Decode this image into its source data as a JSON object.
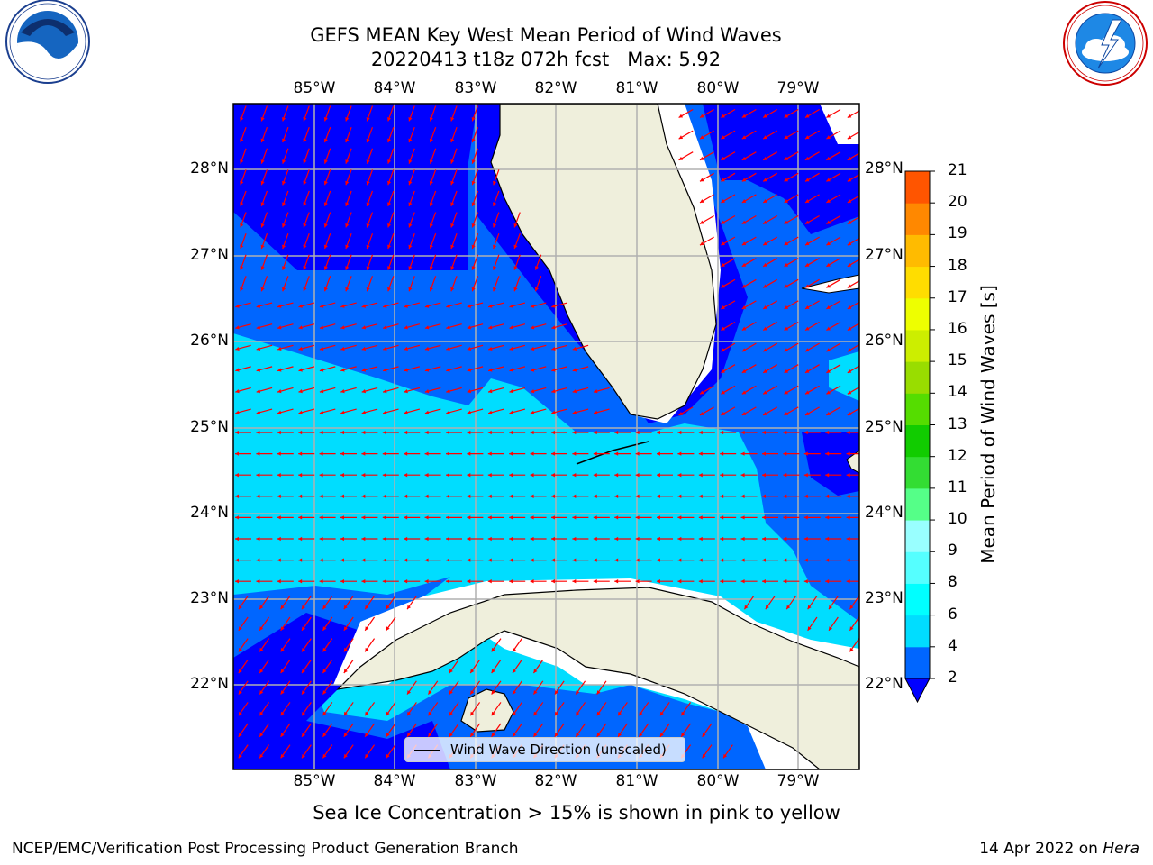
{
  "title_line1": "GEFS MEAN Key West Mean Period of Wind Waves",
  "title_line2": "20220413 t18z 072h fcst   Max: 5.92",
  "footnote": "Sea Ice Concentration > 15% is shown in pink to yellow",
  "credit": "NCEP/EMC/Verification Post Processing Product Generation Branch",
  "date_line_prefix": "14 Apr 2022 on ",
  "date_line_host": "Hera",
  "legend": {
    "label": "Wind Wave Direction (unscaled)"
  },
  "logos": {
    "left": "noara-logo",
    "right": "national-weather-service-logo"
  },
  "colorbar": {
    "title": "Mean Period of Wind Waves [s]",
    "ticks": [
      "2",
      "4",
      "6",
      "8",
      "9",
      "10",
      "11",
      "12",
      "13",
      "14",
      "15",
      "16",
      "17",
      "18",
      "19",
      "20",
      "21"
    ],
    "colors": [
      "#0066ff",
      "#00ddff",
      "#00ffff",
      "#55ffff",
      "#99ffff",
      "#55ff88",
      "#33dd33",
      "#11cc00",
      "#55dd00",
      "#99dd00",
      "#ccee00",
      "#eeff00",
      "#ffdd00",
      "#ffbb00",
      "#ff8800",
      "#ff5500",
      "#ff3300",
      "#ff1100"
    ],
    "under_color": "#0000ff"
  },
  "map": {
    "lon_labels": [
      "85°W",
      "84°W",
      "83°W",
      "82°W",
      "81°W",
      "80°W",
      "79°W"
    ],
    "lat_labels": [
      "28°N",
      "27°N",
      "26°N",
      "25°N",
      "24°N",
      "23°N",
      "22°N"
    ],
    "land_color": "#efefdc",
    "band_colors": {
      "lt2": "#0000ff",
      "2to4": "#0066ff",
      "4to6": "#00ddff"
    },
    "arrow_color": "#ff0000"
  }
}
